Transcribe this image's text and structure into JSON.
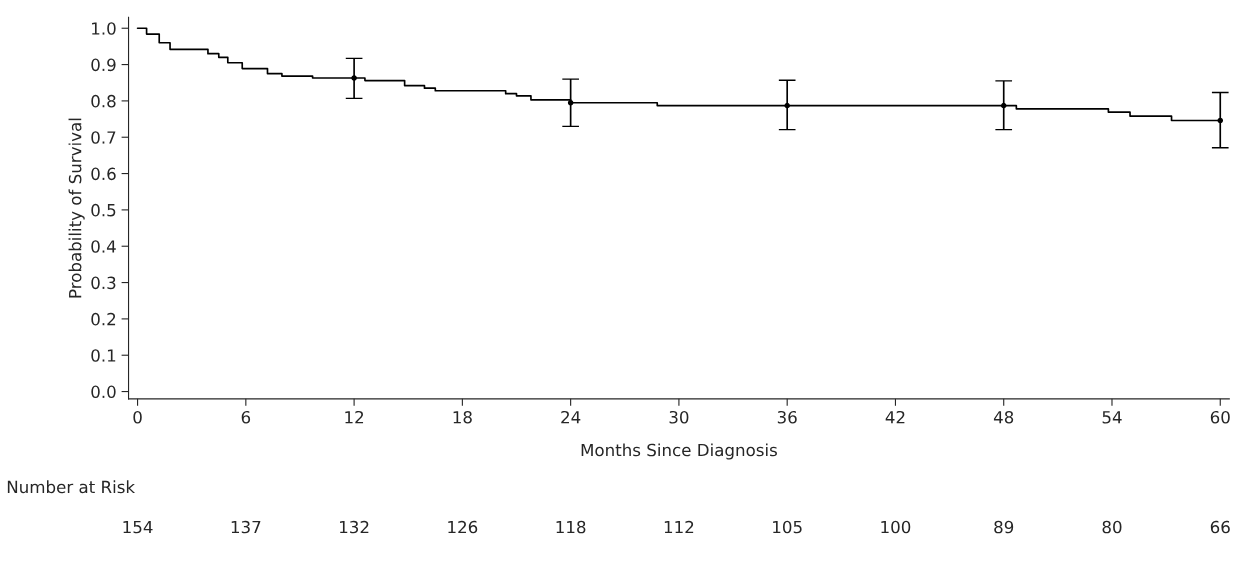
{
  "chart_data": {
    "type": "step",
    "xlabel": "Months Since Diagnosis",
    "ylabel": "Probability of Survival",
    "series": [
      {
        "color": "#000000",
        "x": [
          0,
          0.5,
          1.2,
          1.8,
          3.9,
          4.5,
          5.0,
          5.8,
          7.2,
          8.0,
          9.7,
          12.6,
          14.8,
          15.9,
          16.5,
          20.4,
          21.0,
          21.8,
          24.0,
          28.8,
          48.7,
          53.8,
          55.0,
          57.3,
          60
        ],
        "values": [
          1.0,
          0.984,
          0.96,
          0.942,
          0.93,
          0.92,
          0.905,
          0.889,
          0.875,
          0.868,
          0.863,
          0.856,
          0.842,
          0.835,
          0.828,
          0.82,
          0.814,
          0.803,
          0.795,
          0.787,
          0.778,
          0.769,
          0.758,
          0.746,
          0.746
        ]
      },
      {
        "type": "scatter",
        "color": "#000000",
        "marker": "circle",
        "x": [
          12,
          24,
          36,
          48,
          60
        ],
        "values": [
          0.863,
          0.795,
          0.787,
          0.787,
          0.746
        ],
        "errors": [
          [
            0.807,
            0.917
          ],
          [
            0.73,
            0.86
          ],
          [
            0.721,
            0.857
          ],
          [
            0.721,
            0.855
          ],
          [
            0.671,
            0.823
          ]
        ]
      }
    ],
    "xlim": [
      -0.5,
      60.5
    ],
    "xticks": [
      0,
      6,
      12,
      18,
      24,
      30,
      36,
      42,
      48,
      54,
      60
    ],
    "ylim": [
      -0.02,
      1.03
    ],
    "yticks": [
      {
        "value": 0,
        "label": "0.0"
      },
      0.1,
      0.2,
      0.3,
      0.4,
      0.5,
      0.6,
      0.7,
      0.8,
      0.9,
      {
        "value": 1,
        "label": "1.0"
      }
    ],
    "grid": false,
    "legend": false,
    "annotations": [
      "Number at Risk",
      "154",
      "137",
      "132",
      "126",
      "118",
      "112",
      "105",
      "100",
      "89",
      "80",
      "66"
    ]
  }
}
